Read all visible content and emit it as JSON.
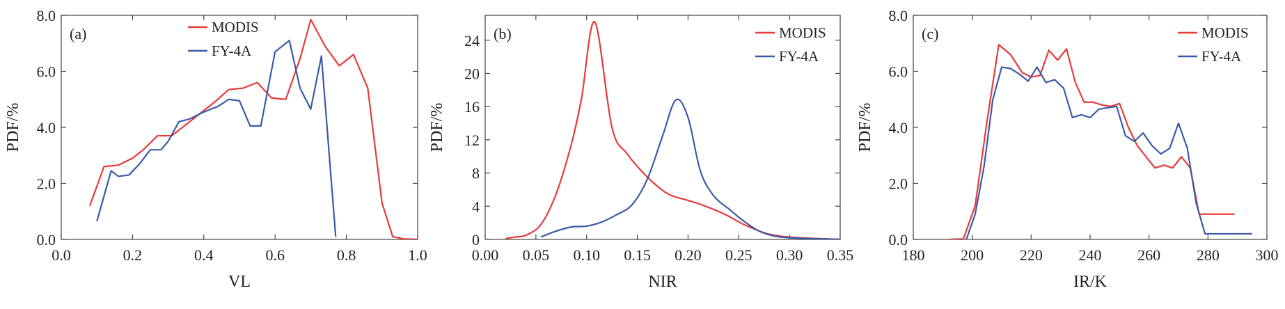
{
  "chart_data": [
    {
      "type": "line",
      "panel_label": "(a)",
      "xlabel": "VL",
      "ylabel": "PDF/%",
      "xlim": [
        0.0,
        1.0
      ],
      "ylim": [
        0.0,
        8.0
      ],
      "xticks": [
        0.0,
        0.2,
        0.4,
        0.6,
        0.8,
        1.0
      ],
      "yticks": [
        0.0,
        2.0,
        4.0,
        6.0,
        8.0
      ],
      "xtick_labels": [
        "0.0",
        "0.2",
        "0.4",
        "0.6",
        "0.8",
        "1.0"
      ],
      "ytick_labels": [
        "0.0",
        "2.0",
        "4.0",
        "6.0",
        "8.0"
      ],
      "legend_position": "top-center",
      "series": [
        {
          "name": "MODIS",
          "color": "#e8393b",
          "x": [
            0.08,
            0.12,
            0.16,
            0.2,
            0.23,
            0.27,
            0.31,
            0.35,
            0.39,
            0.43,
            0.47,
            0.51,
            0.55,
            0.59,
            0.63,
            0.67,
            0.7,
            0.74,
            0.78,
            0.82,
            0.86,
            0.9,
            0.93,
            0.96,
            1.0
          ],
          "y": [
            1.2,
            2.6,
            2.65,
            2.9,
            3.2,
            3.7,
            3.7,
            4.1,
            4.5,
            4.9,
            5.35,
            5.4,
            5.6,
            5.05,
            5.0,
            6.45,
            7.85,
            6.9,
            6.2,
            6.6,
            5.4,
            1.3,
            0.1,
            0.02,
            0.0
          ]
        },
        {
          "name": "FY-4A",
          "color": "#3a5aa8",
          "x": [
            0.1,
            0.14,
            0.16,
            0.19,
            0.22,
            0.25,
            0.28,
            0.3,
            0.33,
            0.36,
            0.4,
            0.44,
            0.47,
            0.5,
            0.53,
            0.56,
            0.6,
            0.64,
            0.67,
            0.7,
            0.73,
            0.77
          ],
          "y": [
            0.65,
            2.45,
            2.25,
            2.3,
            2.7,
            3.2,
            3.2,
            3.5,
            4.2,
            4.3,
            4.55,
            4.75,
            5.0,
            4.95,
            4.05,
            4.05,
            6.7,
            7.1,
            5.4,
            4.65,
            6.55,
            0.1
          ]
        }
      ]
    },
    {
      "type": "line",
      "panel_label": "(b)",
      "xlabel": "NIR",
      "ylabel": "PDF/%",
      "xlim": [
        0.0,
        0.35
      ],
      "ylim": [
        0,
        27
      ],
      "xticks": [
        0.0,
        0.05,
        0.1,
        0.15,
        0.2,
        0.25,
        0.3,
        0.35
      ],
      "yticks": [
        0,
        4,
        8,
        12,
        16,
        20,
        24
      ],
      "xtick_labels": [
        "0.00",
        "0.05",
        "0.10",
        "0.15",
        "0.20",
        "0.25",
        "0.30",
        "0.35"
      ],
      "ytick_labels": [
        "0",
        "4",
        "8",
        "12",
        "16",
        "20",
        "24"
      ],
      "legend_position": "top-right",
      "series": [
        {
          "name": "MODIS",
          "color": "#e8393b",
          "x": [
            0.02,
            0.03,
            0.04,
            0.055,
            0.07,
            0.085,
            0.095,
            0.108,
            0.125,
            0.14,
            0.16,
            0.18,
            0.2,
            0.215,
            0.235,
            0.255,
            0.275,
            0.29,
            0.31,
            0.33,
            0.35
          ],
          "y": [
            0.1,
            0.3,
            0.5,
            1.8,
            5.5,
            11.5,
            17.0,
            26.2,
            13.5,
            10.3,
            7.5,
            5.5,
            4.7,
            4.1,
            3.1,
            1.8,
            0.8,
            0.4,
            0.2,
            0.1,
            0.0
          ],
          "smooth": true
        },
        {
          "name": "FY-4A",
          "color": "#3a5aa8",
          "x": [
            0.055,
            0.07,
            0.085,
            0.1,
            0.115,
            0.13,
            0.145,
            0.16,
            0.175,
            0.188,
            0.2,
            0.212,
            0.225,
            0.24,
            0.255,
            0.27,
            0.285,
            0.3,
            0.32,
            0.35
          ],
          "y": [
            0.3,
            1.0,
            1.5,
            1.6,
            2.1,
            3.0,
            4.2,
            7.3,
            12.5,
            16.8,
            14.7,
            8.3,
            5.3,
            3.7,
            2.2,
            1.0,
            0.4,
            0.2,
            0.1,
            0.0
          ],
          "smooth": true
        }
      ]
    },
    {
      "type": "line",
      "panel_label": "(c)",
      "xlabel": "IR/K",
      "ylabel": "PDF/%",
      "xlim": [
        180,
        300
      ],
      "ylim": [
        0.0,
        8.0
      ],
      "xticks": [
        180,
        200,
        220,
        240,
        260,
        280,
        300
      ],
      "yticks": [
        0.0,
        2.0,
        4.0,
        6.0,
        8.0
      ],
      "xtick_labels": [
        "180",
        "200",
        "220",
        "240",
        "260",
        "280",
        "300"
      ],
      "ytick_labels": [
        "0.0",
        "2.0",
        "4.0",
        "6.0",
        "8.0"
      ],
      "legend_position": "top-right",
      "series": [
        {
          "name": "MODIS",
          "color": "#e8393b",
          "x": [
            192,
            197,
            201,
            205,
            209,
            213,
            217,
            220,
            223,
            226,
            229,
            232,
            235,
            238,
            241,
            244,
            247,
            250,
            253,
            256,
            259,
            262,
            265,
            268,
            271,
            274,
            277,
            280,
            283,
            286,
            289
          ],
          "y": [
            0.0,
            0.02,
            1.2,
            4.2,
            6.95,
            6.6,
            5.95,
            5.8,
            5.85,
            6.75,
            6.4,
            6.8,
            5.6,
            4.9,
            4.9,
            4.8,
            4.75,
            4.85,
            4.0,
            3.35,
            2.95,
            2.55,
            2.65,
            2.55,
            2.95,
            2.55,
            0.9,
            0.9,
            0.9,
            0.9,
            0.9
          ]
        },
        {
          "name": "FY-4A",
          "color": "#3a5aa8",
          "x": [
            198,
            201,
            204,
            207,
            210,
            213,
            216,
            219,
            222,
            225,
            228,
            231,
            234,
            237,
            240,
            243,
            246,
            249,
            252,
            255,
            258,
            261,
            264,
            267,
            270,
            273,
            276,
            279,
            282,
            285,
            288,
            291,
            295
          ],
          "y": [
            0.0,
            0.9,
            2.6,
            5.0,
            6.15,
            6.1,
            5.9,
            5.65,
            6.15,
            5.6,
            5.7,
            5.4,
            4.35,
            4.45,
            4.35,
            4.65,
            4.7,
            4.75,
            3.7,
            3.5,
            3.8,
            3.35,
            3.05,
            3.25,
            4.15,
            3.25,
            1.3,
            0.2,
            0.2,
            0.2,
            0.2,
            0.2,
            0.2
          ]
        }
      ]
    }
  ]
}
